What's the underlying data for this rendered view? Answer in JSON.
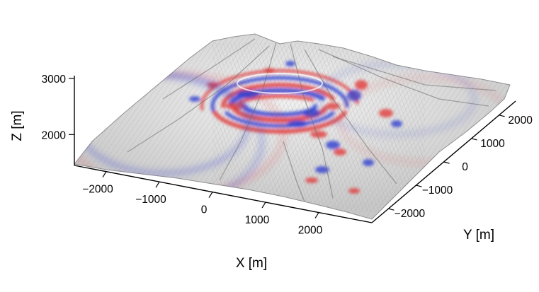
{
  "chart_data": {
    "type": "surface",
    "title": "",
    "xlabel": "X [m]",
    "ylabel": "Y [m]",
    "zlabel": "Z [m]",
    "x_ticks": [
      "−2000",
      "−1000",
      "0",
      "1000",
      "2000"
    ],
    "y_ticks": [
      "−2000",
      "−1000",
      "0",
      "1000",
      "2000"
    ],
    "z_ticks": [
      "2000",
      "3000"
    ],
    "xlim": [
      -2600,
      3000
    ],
    "ylim": [
      -2600,
      2600
    ],
    "zlim": [
      1450,
      3050
    ],
    "surface": {
      "description_kind": "volcanic terrain with summit crater",
      "base_color": "#d8d8d8",
      "positive_color": "#e23b3b",
      "negative_color": "#2f3fd0"
    },
    "grid": false
  }
}
